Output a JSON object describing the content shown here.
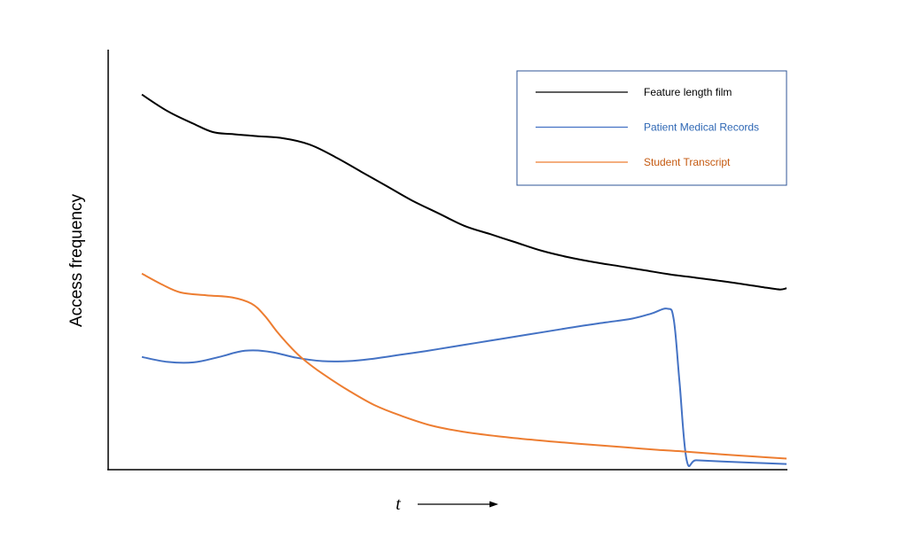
{
  "chart_data": {
    "type": "line",
    "title": "",
    "xlabel": "t",
    "ylabel": "Access frequency",
    "xlim": [
      0,
      100
    ],
    "ylim": [
      0,
      100
    ],
    "grid": false,
    "axis_ticks": false,
    "legend_position": "top-right",
    "series": [
      {
        "name": "Feature length film",
        "color": "#000000",
        "x": [
          0,
          4,
          8,
          11,
          14,
          18,
          22,
          26,
          30,
          34,
          38,
          42,
          46,
          50,
          54,
          58,
          62,
          66,
          70,
          74,
          78,
          82,
          86,
          90,
          94,
          97,
          99,
          100
        ],
        "y": [
          89,
          85,
          82,
          80,
          79.5,
          79,
          78.5,
          77,
          74,
          70.5,
          67,
          63.5,
          60.5,
          57.5,
          55.5,
          53.5,
          51.5,
          50,
          48.8,
          47.8,
          46.8,
          45.8,
          45,
          44.2,
          43.3,
          42.6,
          42.2,
          42.5
        ]
      },
      {
        "name": "Patient Medical Records",
        "color": "#4472c4",
        "x": [
          0,
          4,
          8,
          12,
          16,
          20,
          24,
          28,
          32,
          36,
          40,
          44,
          48,
          52,
          56,
          60,
          64,
          68,
          72,
          76,
          79,
          81.5,
          82.5,
          83.4,
          84.5,
          86,
          90,
          95,
          100
        ],
        "y": [
          26,
          24.8,
          24.7,
          26,
          27.5,
          27.2,
          25.8,
          25,
          25,
          25.6,
          26.5,
          27.4,
          28.4,
          29.4,
          30.4,
          31.4,
          32.4,
          33.4,
          34.3,
          35.2,
          36.4,
          37.6,
          35,
          20,
          1.3,
          1.2,
          0.9,
          0.6,
          0.3
        ]
      },
      {
        "name": "Student Transcript",
        "color": "#ed7d31",
        "x": [
          0,
          3,
          6,
          10,
          14,
          17,
          19,
          21,
          23,
          25,
          28,
          32,
          36,
          40,
          45,
          50,
          55,
          60,
          65,
          70,
          75,
          80,
          85,
          90,
          95,
          100
        ],
        "y": [
          46,
          43.5,
          41.5,
          40.8,
          40.3,
          38.8,
          36,
          32,
          28.5,
          25.5,
          22,
          18,
          14.5,
          12,
          9.5,
          8,
          7,
          6.2,
          5.5,
          4.9,
          4.3,
          3.7,
          3.2,
          2.6,
          2.1,
          1.6
        ]
      }
    ]
  }
}
